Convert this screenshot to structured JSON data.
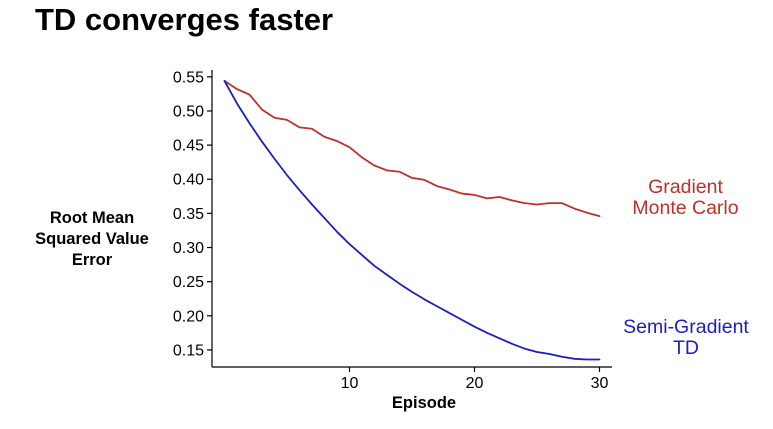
{
  "slide": {
    "title": "TD converges faster"
  },
  "chart_data": {
    "type": "line",
    "xlabel": "Episode",
    "ylabel": "Root Mean Squared Value Error",
    "xlim": [
      -1,
      31
    ],
    "ylim": [
      0.125,
      0.56
    ],
    "xticks": [
      10,
      20,
      30
    ],
    "xtick_labels": [
      "10",
      "20",
      "30"
    ],
    "yticks": [
      0.15,
      0.2,
      0.25,
      0.3,
      0.35,
      0.4,
      0.45,
      0.5,
      0.55
    ],
    "ytick_labels": [
      "0.15",
      "0.20",
      "0.25",
      "0.30",
      "0.35",
      "0.40",
      "0.45",
      "0.50",
      "0.55"
    ],
    "grid": false,
    "x": [
      0,
      1,
      2,
      3,
      4,
      5,
      6,
      7,
      8,
      9,
      10,
      11,
      12,
      13,
      14,
      15,
      16,
      17,
      18,
      19,
      20,
      21,
      22,
      23,
      24,
      25,
      26,
      27,
      28,
      29,
      30
    ],
    "series": [
      {
        "name": "Gradient Monte Carlo",
        "color": "#c0302a",
        "values": [
          0.544,
          0.532,
          0.524,
          0.502,
          0.49,
          0.487,
          0.476,
          0.474,
          0.462,
          0.456,
          0.447,
          0.432,
          0.42,
          0.413,
          0.411,
          0.402,
          0.399,
          0.39,
          0.385,
          0.379,
          0.377,
          0.372,
          0.374,
          0.369,
          0.365,
          0.363,
          0.365,
          0.365,
          0.357,
          0.351,
          0.346
        ]
      },
      {
        "name": "Semi-Gradient TD",
        "color": "#1a1ec4",
        "values": [
          0.544,
          0.511,
          0.482,
          0.455,
          0.43,
          0.406,
          0.384,
          0.363,
          0.343,
          0.323,
          0.305,
          0.289,
          0.273,
          0.26,
          0.247,
          0.235,
          0.224,
          0.214,
          0.204,
          0.194,
          0.184,
          0.175,
          0.167,
          0.159,
          0.152,
          0.147,
          0.144,
          0.14,
          0.137,
          0.136,
          0.136
        ]
      }
    ],
    "series_labels": {
      "mc": [
        "Gradient",
        "Monte Carlo"
      ],
      "td": [
        "Semi-Gradient",
        "TD"
      ]
    }
  }
}
